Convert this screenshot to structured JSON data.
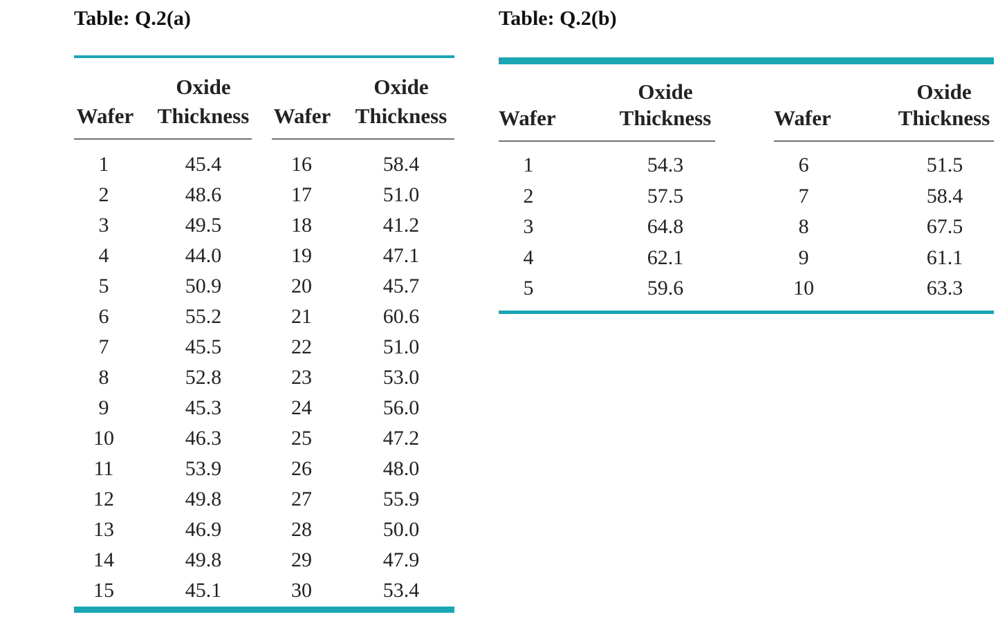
{
  "table_a": {
    "caption": "Table: Q.2(a)",
    "headers": {
      "wafer": "Wafer",
      "oxide_line1": "Oxide",
      "oxide_line2": "Thickness"
    },
    "left": {
      "wafers": [
        "1",
        "2",
        "3",
        "4",
        "5",
        "6",
        "7",
        "8",
        "9",
        "10",
        "11",
        "12",
        "13",
        "14",
        "15"
      ],
      "thickness": [
        "45.4",
        "48.6",
        "49.5",
        "44.0",
        "50.9",
        "55.2",
        "45.5",
        "52.8",
        "45.3",
        "46.3",
        "53.9",
        "49.8",
        "46.9",
        "49.8",
        "45.1"
      ]
    },
    "right": {
      "wafers": [
        "16",
        "17",
        "18",
        "19",
        "20",
        "21",
        "22",
        "23",
        "24",
        "25",
        "26",
        "27",
        "28",
        "29",
        "30"
      ],
      "thickness": [
        "58.4",
        "51.0",
        "41.2",
        "47.1",
        "45.7",
        "60.6",
        "51.0",
        "53.0",
        "56.0",
        "47.2",
        "48.0",
        "55.9",
        "50.0",
        "47.9",
        "53.4"
      ]
    }
  },
  "table_b": {
    "caption": "Table: Q.2(b)",
    "headers": {
      "wafer": "Wafer",
      "oxide_line1": "Oxide",
      "oxide_line2": "Thickness"
    },
    "left": {
      "wafers": [
        "1",
        "2",
        "3",
        "4",
        "5"
      ],
      "thickness": [
        "54.3",
        "57.5",
        "64.8",
        "62.1",
        "59.6"
      ]
    },
    "right": {
      "wafers": [
        "6",
        "7",
        "8",
        "9",
        "10"
      ],
      "thickness": [
        "51.5",
        "58.4",
        "67.5",
        "61.1",
        "63.3"
      ]
    }
  },
  "colors": {
    "accent_rule": "#1aa6b3",
    "sub_rule": "#6f6f6f",
    "text": "#222222"
  }
}
